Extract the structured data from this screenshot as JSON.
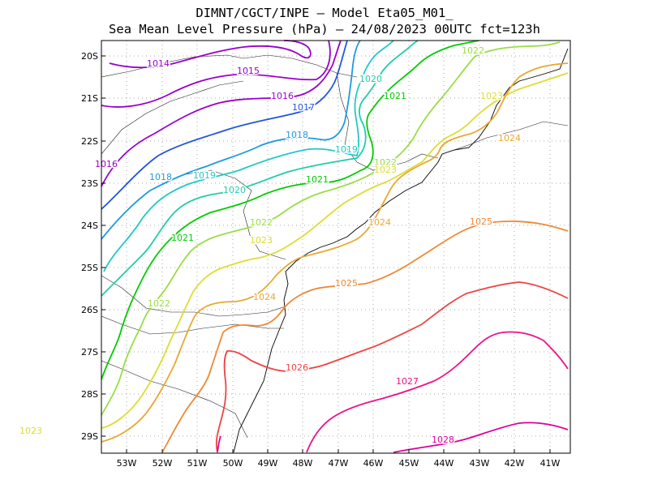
{
  "title": {
    "line1": "DIMNT/CGCT/INPE –  Model Eta05_M01_",
    "line2": "Sea Mean Level Pressure (hPa) – 24/08/2023 00UTC fct=123h"
  },
  "axes": {
    "lat_labels": [
      "20S",
      "21S",
      "22S",
      "23S",
      "24S",
      "25S",
      "26S",
      "27S",
      "28S",
      "29S"
    ],
    "lon_labels": [
      "53W",
      "52W",
      "51W",
      "50W",
      "49W",
      "48W",
      "47W",
      "46W",
      "45W",
      "44W",
      "43W",
      "42W",
      "41W"
    ]
  },
  "contours": [
    {
      "level": "1014",
      "color": "#9900cc",
      "label_pos": [
        [
          195,
          82
        ]
      ]
    },
    {
      "level": "1015",
      "color": "#9900cc",
      "label_pos": [
        [
          306,
          91
        ]
      ]
    },
    {
      "level": "1016",
      "color": "#9900cc",
      "label_pos": [
        [
          348,
          122
        ],
        [
          131,
          206
        ]
      ]
    },
    {
      "level": "1017",
      "color": "#2255dd",
      "label_pos": [
        [
          374,
          136
        ]
      ]
    },
    {
      "level": "1018",
      "color": "#1e9ae0",
      "label_pos": [
        [
          366,
          170
        ],
        [
          198,
          222
        ]
      ]
    },
    {
      "level": "1019",
      "color": "#22c8c8",
      "label_pos": [
        [
          252,
          220
        ],
        [
          427,
          188
        ]
      ]
    },
    {
      "level": "1020",
      "color": "#22ccaa",
      "label_pos": [
        [
          289,
          238
        ],
        [
          457,
          101
        ]
      ]
    },
    {
      "level": "1021",
      "color": "#00cc00",
      "label_pos": [
        [
          391,
          225
        ],
        [
          225,
          297
        ],
        [
          487,
          122
        ]
      ]
    },
    {
      "level": "1022",
      "color": "#99dd44",
      "label_pos": [
        [
          322,
          278
        ],
        [
          196,
          378
        ],
        [
          475,
          204
        ],
        [
          583,
          66
        ]
      ]
    },
    {
      "level": "1023",
      "color": "#dddd33",
      "label_pos": [
        [
          322,
          300
        ],
        [
          38,
          535
        ],
        [
          475,
          213
        ],
        [
          606,
          122
        ]
      ]
    },
    {
      "level": "1024",
      "color": "#e8a830",
      "label_pos": [
        [
          326,
          370
        ],
        [
          468,
          278
        ],
        [
          628,
          174
        ]
      ]
    },
    {
      "level": "1025",
      "color": "#ee8833",
      "label_pos": [
        [
          427,
          353
        ],
        [
          593,
          277
        ]
      ]
    },
    {
      "level": "1026",
      "color": "#ee4444",
      "label_pos": [
        [
          366,
          457
        ]
      ]
    },
    {
      "level": "1027",
      "color": "#ee1188",
      "label_pos": [
        [
          502,
          474
        ]
      ]
    },
    {
      "level": "1028",
      "color": "#dd0099",
      "label_pos": [
        [
          546,
          546
        ]
      ]
    }
  ]
}
